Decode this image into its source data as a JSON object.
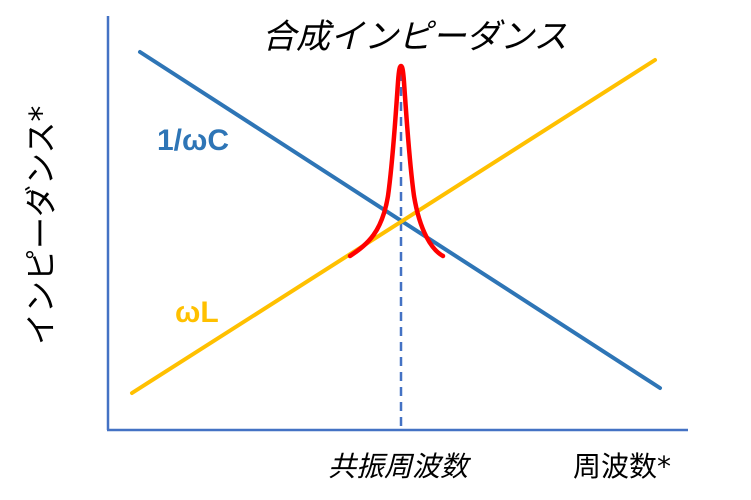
{
  "title": "合成インピーダンス",
  "y_axis_label": "インピーダンス*",
  "x_axis_label": "周波数*",
  "resonance_label": "共振周波数",
  "curves": {
    "capacitive": {
      "label": "1/ωC",
      "color": "#2e75b6"
    },
    "inductive": {
      "label": "ωL",
      "color": "#ffc000"
    },
    "combined": {
      "color": "#ff0000"
    }
  },
  "colors": {
    "axis": "#4472c4",
    "resonance_line": "#4472c4"
  }
}
